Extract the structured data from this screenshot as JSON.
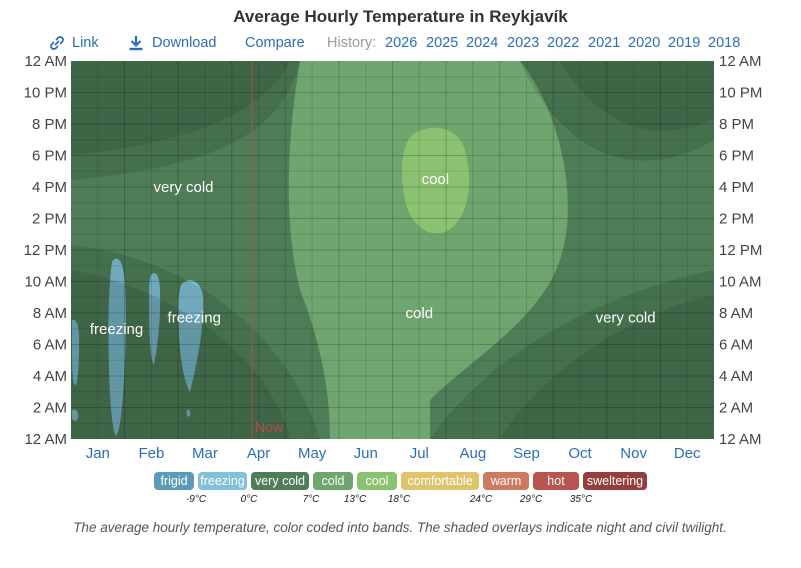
{
  "title": "Average Hourly Temperature in Reykjavík",
  "toolbar": {
    "link_label": "Link",
    "download_label": "Download",
    "compare_label": "Compare",
    "history_label": "History:",
    "years": [
      "2026",
      "2025",
      "2024",
      "2023",
      "2022",
      "2021",
      "2020",
      "2019",
      "2018"
    ],
    "icons": [
      "link-icon",
      "download-icon"
    ]
  },
  "caption": "The average hourly temperature, color coded into bands. The shaded overlays indicate night and civil twilight.",
  "chart_data": {
    "type": "heatmap",
    "title": "Average Hourly Temperature in Reykjavík",
    "x_months": [
      "Jan",
      "Feb",
      "Mar",
      "Apr",
      "May",
      "Jun",
      "Jul",
      "Aug",
      "Sep",
      "Oct",
      "Nov",
      "Dec"
    ],
    "y_hour_labels": [
      "12 AM",
      "2 AM",
      "4 AM",
      "6 AM",
      "8 AM",
      "10 AM",
      "12 PM",
      "2 PM",
      "4 PM",
      "6 PM",
      "8 PM",
      "10 PM",
      "12 AM"
    ],
    "grid": true,
    "now_label": "Now",
    "now_month_fraction": 3.38,
    "legend": [
      {
        "name": "frigid",
        "color": "#5a9bb8"
      },
      {
        "name": "freezing",
        "color": "#82bfd8"
      },
      {
        "name": "very cold",
        "color": "#4f7d58"
      },
      {
        "name": "cold",
        "color": "#6fa56e"
      },
      {
        "name": "cool",
        "color": "#8bc271"
      },
      {
        "name": "comfortable",
        "color": "#e0c46c"
      },
      {
        "name": "warm",
        "color": "#cc7a60"
      },
      {
        "name": "hot",
        "color": "#b85550"
      },
      {
        "name": "sweltering",
        "color": "#963e3e"
      }
    ],
    "thresholds": [
      "-9°C",
      "0°C",
      "7°C",
      "13°C",
      "18°C",
      "24°C",
      "29°C",
      "35°C"
    ],
    "band_labels": [
      {
        "text": "very cold",
        "month": 2.1,
        "hour": 16.0
      },
      {
        "text": "freezing",
        "month": 0.85,
        "hour": 7.0
      },
      {
        "text": "freezing",
        "month": 2.3,
        "hour": 7.7
      },
      {
        "text": "cold",
        "month": 6.5,
        "hour": 8.0
      },
      {
        "text": "cool",
        "month": 6.8,
        "hour": 16.5
      },
      {
        "text": "very cold",
        "month": 10.35,
        "hour": 7.7
      }
    ]
  }
}
